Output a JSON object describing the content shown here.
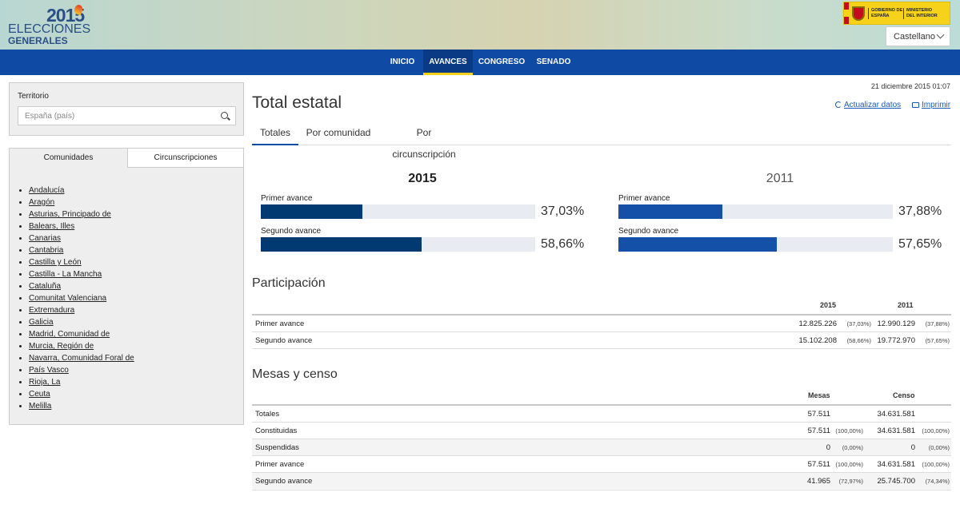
{
  "header": {
    "logo_year": "2015",
    "logo_line1": "ELECCIONES",
    "logo_line2": "GENERALES",
    "gov_line1": "GOBIERNO DE ESPAÑA",
    "gov_line2": "MINISTERIO DEL INTERIOR",
    "language": "Castellano"
  },
  "nav": {
    "items": [
      {
        "label": "INICIO"
      },
      {
        "label": "AVANCES"
      },
      {
        "label": "CONGRESO"
      },
      {
        "label": "SENADO"
      }
    ],
    "active": "AVANCES"
  },
  "sidebar": {
    "territory_label": "Territorio",
    "territory_placeholder": "España (país)",
    "tabs": [
      {
        "label": "Comunidades"
      },
      {
        "label": "Circunscripciones"
      }
    ],
    "communities": [
      "Andalucía",
      "Aragón",
      "Asturias, Principado de",
      "Balears, Illes",
      "Canarias",
      "Cantabria",
      "Castilla y León",
      "Castilla - La Mancha",
      "Cataluña",
      "Comunitat Valenciana",
      "Extremadura",
      "Galicia",
      "Madrid, Comunidad de",
      "Murcia, Región de",
      "Navarra, Comunidad Foral de",
      "País Vasco",
      "Rioja, La",
      "Ceuta",
      "Melilla"
    ]
  },
  "main": {
    "datetime": "21 diciembre 2015 01:07",
    "title": "Total estatal",
    "refresh_label": "Actualizar datos",
    "print_label": "Imprimir",
    "tabs": [
      {
        "label": "Totales"
      },
      {
        "label": "Por comunidad"
      },
      {
        "label": "Por circunscripción"
      }
    ],
    "advances": [
      {
        "year": "2015",
        "color": "#003a70",
        "bars": [
          {
            "label": "Primer avance",
            "value_text": "37,03%",
            "value": 37.03
          },
          {
            "label": "Segundo avance",
            "value_text": "58,66%",
            "value": 58.66
          }
        ]
      },
      {
        "year": "2011",
        "color": "#1450a8",
        "bars": [
          {
            "label": "Primer avance",
            "value_text": "37,88%",
            "value": 37.88
          },
          {
            "label": "Segundo avance",
            "value_text": "57,65%",
            "value": 57.65
          }
        ]
      }
    ],
    "participation": {
      "title": "Participación",
      "headers": [
        "2015",
        "2011"
      ],
      "rows": [
        {
          "label": "Primer avance",
          "v2015": "12.825.226",
          "p2015": "(37,03%)",
          "v2011": "12.990.129",
          "p2011": "(37,88%)"
        },
        {
          "label": "Segundo avance",
          "v2015": "15.102.208",
          "p2015": "(58,66%)",
          "v2011": "19.772.970",
          "p2011": "(57,65%)"
        }
      ]
    },
    "mesas": {
      "title": "Mesas y censo",
      "headers": [
        "Mesas",
        "Censo"
      ],
      "rows": [
        {
          "label": "Totales",
          "mesas": "57.511",
          "pm": "",
          "censo": "34.631.581",
          "pc": ""
        },
        {
          "label": "Constituidas",
          "mesas": "57.511",
          "pm": "(100,00%)",
          "censo": "34.631.581",
          "pc": "(100,00%)"
        },
        {
          "label": "Suspendidas",
          "mesas": "0",
          "pm": "(0,00%)",
          "censo": "0",
          "pc": "(0,00%)"
        },
        {
          "label": "Primer avance",
          "mesas": "57.511",
          "pm": "(100,00%)",
          "censo": "34.631.581",
          "pc": "(100,00%)"
        },
        {
          "label": "Segundo avance",
          "mesas": "41.965",
          "pm": "(72,97%)",
          "censo": "25.745.700",
          "pc": "(74,34%)"
        }
      ]
    }
  }
}
